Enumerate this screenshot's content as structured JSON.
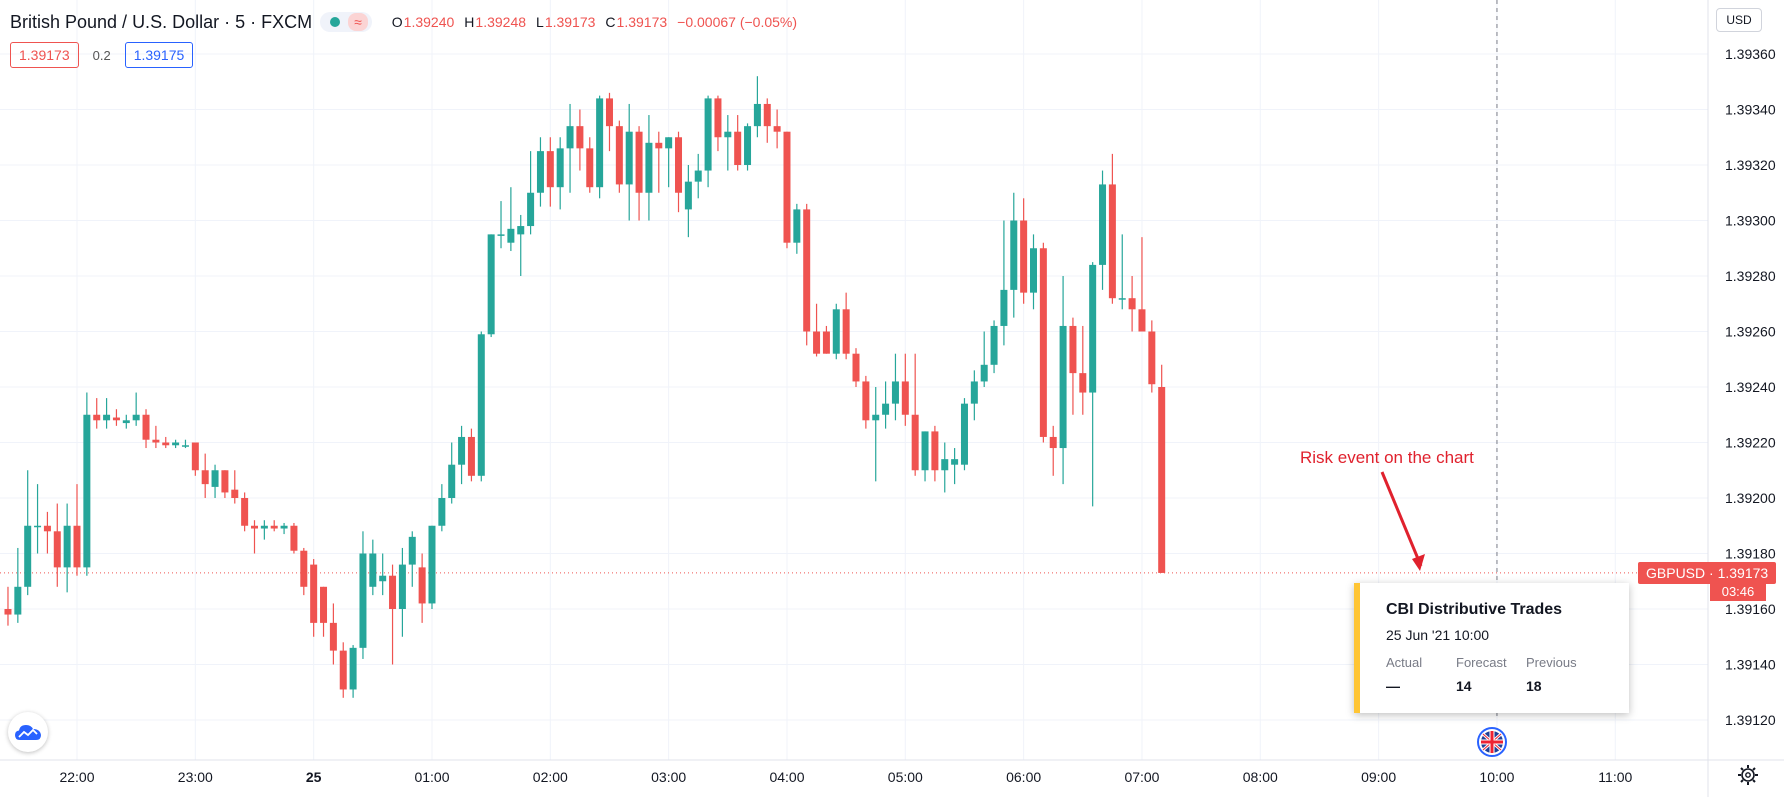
{
  "header": {
    "symbol": "British Pound / U.S. Dollar · 5 · FXCM",
    "wave_icon": "≈",
    "ohlc": [
      {
        "k": "O",
        "v": "1.39240"
      },
      {
        "k": "H",
        "v": "1.39248"
      },
      {
        "k": "L",
        "v": "1.39173"
      },
      {
        "k": "C",
        "v": "1.39173"
      },
      {
        "k": "",
        "v": "−0.00067 (−0.05%)"
      }
    ]
  },
  "quotes": {
    "sell": "1.39173",
    "spread": "0.2",
    "buy": "1.39175"
  },
  "currency": "USD",
  "price_tag": {
    "label": "GBPUSD",
    "value": "1.39173",
    "countdown": "03:46"
  },
  "annotation": "Risk event on the chart",
  "event": {
    "title": "CBI Distributive Trades",
    "date": "25 Jun '21 10:00",
    "actual_label": "Actual",
    "actual": "—",
    "forecast_label": "Forecast",
    "forecast": "14",
    "previous_label": "Previous",
    "previous": "18"
  },
  "colors": {
    "up": "#26a69a",
    "down": "#ef5350",
    "grid": "#f0f3fa",
    "annotation": "#e0212d",
    "event_accent": "#ffc534"
  },
  "chart_data": {
    "type": "candlestick",
    "title": "British Pound / U.S. Dollar · 5 · FXCM",
    "interval": "5 min",
    "ylim": [
      1.3911,
      1.3937
    ],
    "y_ticks": [
      "1.39120",
      "1.39140",
      "1.39160",
      "1.39180",
      "1.39200",
      "1.39220",
      "1.39240",
      "1.39260",
      "1.39280",
      "1.39300",
      "1.39320",
      "1.39340",
      "1.39360"
    ],
    "x_ticks": [
      "22:00",
      "23:00",
      "25",
      "01:00",
      "02:00",
      "03:00",
      "04:00",
      "05:00",
      "06:00",
      "07:00",
      "08:00",
      "09:00",
      "10:00",
      "11:00"
    ],
    "x_tick_times": [
      "2021-06-24T22:00",
      "2021-06-24T23:00",
      "2021-06-25T00:00",
      "2021-06-25T01:00",
      "2021-06-25T02:00",
      "2021-06-25T03:00",
      "2021-06-25T04:00",
      "2021-06-25T05:00",
      "2021-06-25T06:00",
      "2021-06-25T07:00",
      "2021-06-25T08:00",
      "2021-06-25T09:00",
      "2021-06-25T10:00",
      "2021-06-25T11:00"
    ],
    "bold_tick": "25",
    "last_price": 1.39173,
    "event_marker": "2021-06-25T10:00",
    "candles": [
      {
        "t": "2021-06-24T21:25",
        "o": 1.3916,
        "h": 1.39168,
        "l": 1.39154,
        "c": 1.39158
      },
      {
        "t": "2021-06-24T21:30",
        "o": 1.39158,
        "h": 1.39182,
        "l": 1.39155,
        "c": 1.39168
      },
      {
        "t": "2021-06-24T21:35",
        "o": 1.39168,
        "h": 1.3921,
        "l": 1.39165,
        "c": 1.3919
      },
      {
        "t": "2021-06-24T21:40",
        "o": 1.3919,
        "h": 1.39205,
        "l": 1.3918,
        "c": 1.3919
      },
      {
        "t": "2021-06-24T21:45",
        "o": 1.3919,
        "h": 1.39195,
        "l": 1.3918,
        "c": 1.39188
      },
      {
        "t": "2021-06-24T21:50",
        "o": 1.39188,
        "h": 1.39198,
        "l": 1.39168,
        "c": 1.39175
      },
      {
        "t": "2021-06-24T21:55",
        "o": 1.39175,
        "h": 1.39198,
        "l": 1.39166,
        "c": 1.3919
      },
      {
        "t": "2021-06-24T22:00",
        "o": 1.3919,
        "h": 1.39205,
        "l": 1.39172,
        "c": 1.39175
      },
      {
        "t": "2021-06-24T22:05",
        "o": 1.39175,
        "h": 1.39238,
        "l": 1.39172,
        "c": 1.3923
      },
      {
        "t": "2021-06-24T22:10",
        "o": 1.3923,
        "h": 1.39236,
        "l": 1.39225,
        "c": 1.39228
      },
      {
        "t": "2021-06-24T22:15",
        "o": 1.39228,
        "h": 1.39236,
        "l": 1.39225,
        "c": 1.3923
      },
      {
        "t": "2021-06-24T22:20",
        "o": 1.39229,
        "h": 1.39232,
        "l": 1.39226,
        "c": 1.39228
      },
      {
        "t": "2021-06-24T22:25",
        "o": 1.39227,
        "h": 1.3923,
        "l": 1.39225,
        "c": 1.39228
      },
      {
        "t": "2021-06-24T22:30",
        "o": 1.39228,
        "h": 1.39238,
        "l": 1.39226,
        "c": 1.3923
      },
      {
        "t": "2021-06-24T22:35",
        "o": 1.3923,
        "h": 1.39232,
        "l": 1.39218,
        "c": 1.39221
      },
      {
        "t": "2021-06-24T22:40",
        "o": 1.39221,
        "h": 1.39226,
        "l": 1.39218,
        "c": 1.3922
      },
      {
        "t": "2021-06-24T22:45",
        "o": 1.3922,
        "h": 1.39222,
        "l": 1.39218,
        "c": 1.39219
      },
      {
        "t": "2021-06-24T22:50",
        "o": 1.39219,
        "h": 1.39221,
        "l": 1.39218,
        "c": 1.3922
      },
      {
        "t": "2021-06-24T22:55",
        "o": 1.39219,
        "h": 1.39221,
        "l": 1.39218,
        "c": 1.39219
      },
      {
        "t": "2021-06-24T23:00",
        "o": 1.3922,
        "h": 1.3922,
        "l": 1.39208,
        "c": 1.3921
      },
      {
        "t": "2021-06-24T23:05",
        "o": 1.3921,
        "h": 1.39216,
        "l": 1.392,
        "c": 1.39205
      },
      {
        "t": "2021-06-24T23:10",
        "o": 1.39204,
        "h": 1.39212,
        "l": 1.392,
        "c": 1.3921
      },
      {
        "t": "2021-06-24T23:15",
        "o": 1.3921,
        "h": 1.3921,
        "l": 1.392,
        "c": 1.39202
      },
      {
        "t": "2021-06-24T23:20",
        "o": 1.39203,
        "h": 1.3921,
        "l": 1.39198,
        "c": 1.392
      },
      {
        "t": "2021-06-24T23:25",
        "o": 1.392,
        "h": 1.39202,
        "l": 1.39188,
        "c": 1.3919
      },
      {
        "t": "2021-06-24T23:30",
        "o": 1.3919,
        "h": 1.39192,
        "l": 1.3918,
        "c": 1.39189
      },
      {
        "t": "2021-06-24T23:35",
        "o": 1.39189,
        "h": 1.39192,
        "l": 1.39185,
        "c": 1.3919
      },
      {
        "t": "2021-06-24T23:40",
        "o": 1.3919,
        "h": 1.39192,
        "l": 1.39188,
        "c": 1.39189
      },
      {
        "t": "2021-06-24T23:45",
        "o": 1.39189,
        "h": 1.39191,
        "l": 1.39187,
        "c": 1.3919
      },
      {
        "t": "2021-06-24T23:50",
        "o": 1.3919,
        "h": 1.39191,
        "l": 1.3918,
        "c": 1.39181
      },
      {
        "t": "2021-06-24T23:55",
        "o": 1.39181,
        "h": 1.39182,
        "l": 1.39165,
        "c": 1.39168
      },
      {
        "t": "2021-06-25T00:00",
        "o": 1.39176,
        "h": 1.39178,
        "l": 1.3915,
        "c": 1.39155
      },
      {
        "t": "2021-06-25T00:05",
        "o": 1.39168,
        "h": 1.39168,
        "l": 1.3915,
        "c": 1.39155
      },
      {
        "t": "2021-06-25T00:10",
        "o": 1.39155,
        "h": 1.39162,
        "l": 1.3914,
        "c": 1.39145
      },
      {
        "t": "2021-06-25T00:15",
        "o": 1.39145,
        "h": 1.39148,
        "l": 1.39128,
        "c": 1.39131
      },
      {
        "t": "2021-06-25T00:20",
        "o": 1.39131,
        "h": 1.39147,
        "l": 1.39128,
        "c": 1.39146
      },
      {
        "t": "2021-06-25T00:25",
        "o": 1.39146,
        "h": 1.39188,
        "l": 1.39142,
        "c": 1.3918
      },
      {
        "t": "2021-06-25T00:30",
        "o": 1.39168,
        "h": 1.39185,
        "l": 1.39165,
        "c": 1.3918
      },
      {
        "t": "2021-06-25T00:35",
        "o": 1.3917,
        "h": 1.3918,
        "l": 1.39165,
        "c": 1.39172
      },
      {
        "t": "2021-06-25T00:40",
        "o": 1.39172,
        "h": 1.39176,
        "l": 1.3914,
        "c": 1.3916
      },
      {
        "t": "2021-06-25T00:45",
        "o": 1.3916,
        "h": 1.39182,
        "l": 1.3915,
        "c": 1.39176
      },
      {
        "t": "2021-06-25T00:50",
        "o": 1.39176,
        "h": 1.39188,
        "l": 1.39168,
        "c": 1.39186
      },
      {
        "t": "2021-06-25T00:55",
        "o": 1.39175,
        "h": 1.3918,
        "l": 1.39155,
        "c": 1.39162
      },
      {
        "t": "2021-06-25T01:00",
        "o": 1.39162,
        "h": 1.3919,
        "l": 1.3916,
        "c": 1.3919
      },
      {
        "t": "2021-06-25T01:05",
        "o": 1.3919,
        "h": 1.39205,
        "l": 1.39188,
        "c": 1.392
      },
      {
        "t": "2021-06-25T01:10",
        "o": 1.392,
        "h": 1.3922,
        "l": 1.39198,
        "c": 1.39212
      },
      {
        "t": "2021-06-25T01:15",
        "o": 1.39212,
        "h": 1.39226,
        "l": 1.39205,
        "c": 1.39222
      },
      {
        "t": "2021-06-25T01:20",
        "o": 1.39222,
        "h": 1.39225,
        "l": 1.39206,
        "c": 1.39208
      },
      {
        "t": "2021-06-25T01:25",
        "o": 1.39208,
        "h": 1.3926,
        "l": 1.39206,
        "c": 1.39259
      },
      {
        "t": "2021-06-25T01:30",
        "o": 1.39259,
        "h": 1.39295,
        "l": 1.39258,
        "c": 1.39295
      },
      {
        "t": "2021-06-25T01:35",
        "o": 1.39295,
        "h": 1.39307,
        "l": 1.3929,
        "c": 1.39295
      },
      {
        "t": "2021-06-25T01:40",
        "o": 1.39292,
        "h": 1.39312,
        "l": 1.39289,
        "c": 1.39297
      },
      {
        "t": "2021-06-25T01:45",
        "o": 1.39295,
        "h": 1.39302,
        "l": 1.3928,
        "c": 1.39298
      },
      {
        "t": "2021-06-25T01:50",
        "o": 1.39298,
        "h": 1.39325,
        "l": 1.39295,
        "c": 1.3931
      },
      {
        "t": "2021-06-25T01:55",
        "o": 1.3931,
        "h": 1.3933,
        "l": 1.39305,
        "c": 1.39325
      },
      {
        "t": "2021-06-25T02:00",
        "o": 1.39325,
        "h": 1.3933,
        "l": 1.39305,
        "c": 1.39312
      },
      {
        "t": "2021-06-25T02:05",
        "o": 1.39312,
        "h": 1.3933,
        "l": 1.39304,
        "c": 1.39326
      },
      {
        "t": "2021-06-25T02:10",
        "o": 1.39326,
        "h": 1.39342,
        "l": 1.3931,
        "c": 1.39334
      },
      {
        "t": "2021-06-25T02:15",
        "o": 1.39334,
        "h": 1.3934,
        "l": 1.39318,
        "c": 1.39326
      },
      {
        "t": "2021-06-25T02:20",
        "o": 1.39326,
        "h": 1.3933,
        "l": 1.3931,
        "c": 1.39312
      },
      {
        "t": "2021-06-25T02:25",
        "o": 1.39312,
        "h": 1.39345,
        "l": 1.39308,
        "c": 1.39344
      },
      {
        "t": "2021-06-25T02:30",
        "o": 1.39344,
        "h": 1.39346,
        "l": 1.39325,
        "c": 1.39334
      },
      {
        "t": "2021-06-25T02:35",
        "o": 1.39334,
        "h": 1.39336,
        "l": 1.3931,
        "c": 1.39313
      },
      {
        "t": "2021-06-25T02:40",
        "o": 1.39313,
        "h": 1.39342,
        "l": 1.393,
        "c": 1.39332
      },
      {
        "t": "2021-06-25T02:45",
        "o": 1.39332,
        "h": 1.39334,
        "l": 1.393,
        "c": 1.3931
      },
      {
        "t": "2021-06-25T02:50",
        "o": 1.3931,
        "h": 1.39338,
        "l": 1.393,
        "c": 1.39328
      },
      {
        "t": "2021-06-25T02:55",
        "o": 1.39328,
        "h": 1.39332,
        "l": 1.3931,
        "c": 1.39326
      },
      {
        "t": "2021-06-25T03:00",
        "o": 1.39326,
        "h": 1.3933,
        "l": 1.39312,
        "c": 1.3933
      },
      {
        "t": "2021-06-25T03:05",
        "o": 1.3933,
        "h": 1.39332,
        "l": 1.39303,
        "c": 1.3931
      },
      {
        "t": "2021-06-25T03:10",
        "o": 1.39304,
        "h": 1.3932,
        "l": 1.39294,
        "c": 1.39314
      },
      {
        "t": "2021-06-25T03:15",
        "o": 1.39314,
        "h": 1.39324,
        "l": 1.39308,
        "c": 1.39318
      },
      {
        "t": "2021-06-25T03:20",
        "o": 1.39318,
        "h": 1.39345,
        "l": 1.39312,
        "c": 1.39344
      },
      {
        "t": "2021-06-25T03:25",
        "o": 1.39344,
        "h": 1.39345,
        "l": 1.39325,
        "c": 1.3933
      },
      {
        "t": "2021-06-25T03:30",
        "o": 1.3933,
        "h": 1.39338,
        "l": 1.39318,
        "c": 1.39332
      },
      {
        "t": "2021-06-25T03:35",
        "o": 1.39332,
        "h": 1.39338,
        "l": 1.39318,
        "c": 1.3932
      },
      {
        "t": "2021-06-25T03:40",
        "o": 1.3932,
        "h": 1.39335,
        "l": 1.39318,
        "c": 1.39334
      },
      {
        "t": "2021-06-25T03:45",
        "o": 1.39334,
        "h": 1.39352,
        "l": 1.3933,
        "c": 1.39342
      },
      {
        "t": "2021-06-25T03:50",
        "o": 1.39342,
        "h": 1.39344,
        "l": 1.39328,
        "c": 1.39334
      },
      {
        "t": "2021-06-25T03:55",
        "o": 1.39334,
        "h": 1.3934,
        "l": 1.39326,
        "c": 1.39332
      },
      {
        "t": "2021-06-25T04:00",
        "o": 1.39332,
        "h": 1.39332,
        "l": 1.3929,
        "c": 1.39292
      },
      {
        "t": "2021-06-25T04:05",
        "o": 1.39292,
        "h": 1.39306,
        "l": 1.39288,
        "c": 1.39304
      },
      {
        "t": "2021-06-25T04:10",
        "o": 1.39304,
        "h": 1.39306,
        "l": 1.39255,
        "c": 1.3926
      },
      {
        "t": "2021-06-25T04:15",
        "o": 1.3926,
        "h": 1.3927,
        "l": 1.39251,
        "c": 1.39252
      },
      {
        "t": "2021-06-25T04:20",
        "o": 1.3926,
        "h": 1.39262,
        "l": 1.39252,
        "c": 1.39252
      },
      {
        "t": "2021-06-25T04:25",
        "o": 1.39252,
        "h": 1.3927,
        "l": 1.3925,
        "c": 1.39268
      },
      {
        "t": "2021-06-25T04:30",
        "o": 1.39268,
        "h": 1.39274,
        "l": 1.3925,
        "c": 1.39252
      },
      {
        "t": "2021-06-25T04:35",
        "o": 1.39252,
        "h": 1.39254,
        "l": 1.3924,
        "c": 1.39242
      },
      {
        "t": "2021-06-25T04:40",
        "o": 1.39242,
        "h": 1.39244,
        "l": 1.39225,
        "c": 1.39228
      },
      {
        "t": "2021-06-25T04:45",
        "o": 1.39228,
        "h": 1.3924,
        "l": 1.39206,
        "c": 1.3923
      },
      {
        "t": "2021-06-25T04:50",
        "o": 1.3923,
        "h": 1.39242,
        "l": 1.39225,
        "c": 1.39234
      },
      {
        "t": "2021-06-25T04:55",
        "o": 1.39234,
        "h": 1.39252,
        "l": 1.39228,
        "c": 1.39242
      },
      {
        "t": "2021-06-25T05:00",
        "o": 1.39242,
        "h": 1.39252,
        "l": 1.39226,
        "c": 1.3923
      },
      {
        "t": "2021-06-25T05:05",
        "o": 1.3923,
        "h": 1.39252,
        "l": 1.39208,
        "c": 1.3921
      },
      {
        "t": "2021-06-25T05:10",
        "o": 1.3921,
        "h": 1.39224,
        "l": 1.39206,
        "c": 1.39224
      },
      {
        "t": "2021-06-25T05:15",
        "o": 1.39224,
        "h": 1.39226,
        "l": 1.39206,
        "c": 1.3921
      },
      {
        "t": "2021-06-25T05:20",
        "o": 1.3921,
        "h": 1.3922,
        "l": 1.39202,
        "c": 1.39214
      },
      {
        "t": "2021-06-25T05:25",
        "o": 1.39212,
        "h": 1.39218,
        "l": 1.39205,
        "c": 1.39214
      },
      {
        "t": "2021-06-25T05:30",
        "o": 1.39212,
        "h": 1.39236,
        "l": 1.3921,
        "c": 1.39234
      },
      {
        "t": "2021-06-25T05:35",
        "o": 1.39234,
        "h": 1.39246,
        "l": 1.39228,
        "c": 1.39242
      },
      {
        "t": "2021-06-25T05:40",
        "o": 1.39242,
        "h": 1.3926,
        "l": 1.3924,
        "c": 1.39248
      },
      {
        "t": "2021-06-25T05:45",
        "o": 1.39248,
        "h": 1.39264,
        "l": 1.39245,
        "c": 1.39262
      },
      {
        "t": "2021-06-25T05:50",
        "o": 1.39262,
        "h": 1.393,
        "l": 1.39255,
        "c": 1.39275
      },
      {
        "t": "2021-06-25T05:55",
        "o": 1.39275,
        "h": 1.3931,
        "l": 1.39265,
        "c": 1.393
      },
      {
        "t": "2021-06-25T06:00",
        "o": 1.393,
        "h": 1.39308,
        "l": 1.3927,
        "c": 1.39274
      },
      {
        "t": "2021-06-25T06:05",
        "o": 1.39274,
        "h": 1.39295,
        "l": 1.39268,
        "c": 1.3929
      },
      {
        "t": "2021-06-25T06:10",
        "o": 1.3929,
        "h": 1.39292,
        "l": 1.3922,
        "c": 1.39222
      },
      {
        "t": "2021-06-25T06:15",
        "o": 1.39222,
        "h": 1.39226,
        "l": 1.39208,
        "c": 1.39218
      },
      {
        "t": "2021-06-25T06:20",
        "o": 1.39218,
        "h": 1.3928,
        "l": 1.39205,
        "c": 1.39262
      },
      {
        "t": "2021-06-25T06:25",
        "o": 1.39262,
        "h": 1.39265,
        "l": 1.3923,
        "c": 1.39245
      },
      {
        "t": "2021-06-25T06:30",
        "o": 1.39245,
        "h": 1.39262,
        "l": 1.3923,
        "c": 1.39238
      },
      {
        "t": "2021-06-25T06:35",
        "o": 1.39238,
        "h": 1.39285,
        "l": 1.39197,
        "c": 1.39284
      },
      {
        "t": "2021-06-25T06:40",
        "o": 1.39284,
        "h": 1.39318,
        "l": 1.39275,
        "c": 1.39313
      },
      {
        "t": "2021-06-25T06:45",
        "o": 1.39313,
        "h": 1.39324,
        "l": 1.3927,
        "c": 1.39272
      },
      {
        "t": "2021-06-25T06:50",
        "o": 1.39272,
        "h": 1.39295,
        "l": 1.39268,
        "c": 1.39272
      },
      {
        "t": "2021-06-25T06:55",
        "o": 1.39272,
        "h": 1.3928,
        "l": 1.3926,
        "c": 1.39268
      },
      {
        "t": "2021-06-25T07:00",
        "o": 1.39268,
        "h": 1.39294,
        "l": 1.3926,
        "c": 1.3926
      },
      {
        "t": "2021-06-25T07:05",
        "o": 1.3926,
        "h": 1.39264,
        "l": 1.39238,
        "c": 1.39241
      },
      {
        "t": "2021-06-25T07:10",
        "o": 1.3924,
        "h": 1.39248,
        "l": 1.39173,
        "c": 1.39173
      }
    ]
  }
}
